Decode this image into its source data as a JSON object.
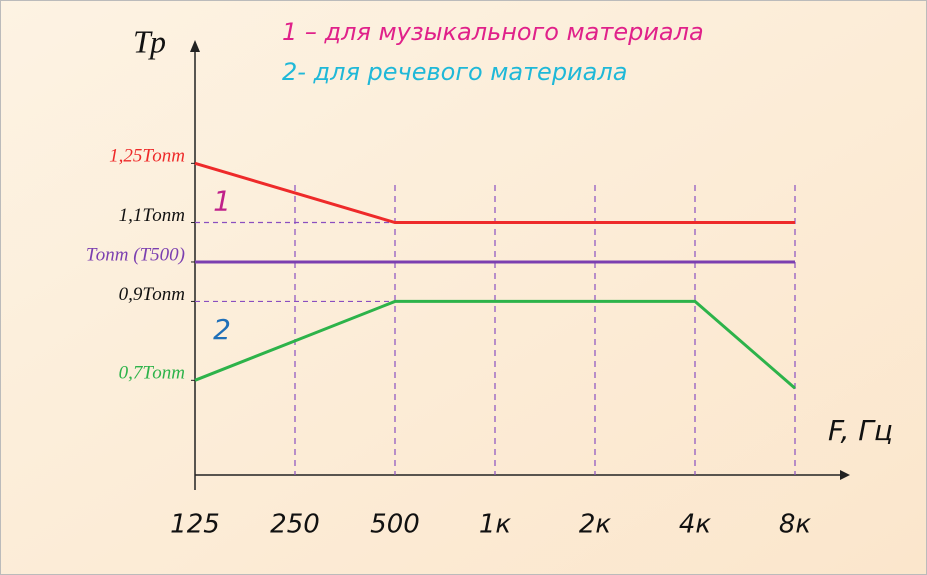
{
  "chart_data": {
    "type": "line",
    "y_label": "Тр",
    "x_label": "F, Гц",
    "legend": [
      {
        "text": "1 – для музыкального материала",
        "color": "#e0218a"
      },
      {
        "text": "2- для речевого материала",
        "color": "#1fb8d8"
      }
    ],
    "categories": [
      "125",
      "250",
      "500",
      "1к",
      "2к",
      "4к",
      "8к"
    ],
    "series": [
      {
        "name": "1",
        "color": "#ee2a2a",
        "label_color": "#c0208a",
        "values": [
          1.25,
          1.175,
          1.1,
          1.1,
          1.1,
          1.1,
          1.1
        ]
      },
      {
        "color": "#7b3fb0",
        "values": [
          1.0,
          1.0,
          1.0,
          1.0,
          1.0,
          1.0,
          1.0
        ]
      },
      {
        "name": "2",
        "color": "#2db34a",
        "label_color": "#1f6fb8",
        "values": [
          0.7,
          0.8,
          0.9,
          0.9,
          0.9,
          0.9,
          0.68
        ]
      }
    ],
    "ylim": [
      0.46,
      1.55
    ],
    "yticks": [
      {
        "value": 1.25,
        "label": "1,25Топт",
        "color": "#ee2a2a"
      },
      {
        "value": 1.1,
        "label": "1,1Топт",
        "color": "#111111"
      },
      {
        "value": 1.0,
        "label": "Топт (Т500)",
        "color": "#7b3fb0"
      },
      {
        "value": 0.9,
        "label": "0,9Топт",
        "color": "#111111"
      },
      {
        "value": 0.7,
        "label": "0,7Топт",
        "color": "#2db34a"
      }
    ],
    "guide_lines": [
      1.1,
      0.9
    ],
    "grid": true
  }
}
